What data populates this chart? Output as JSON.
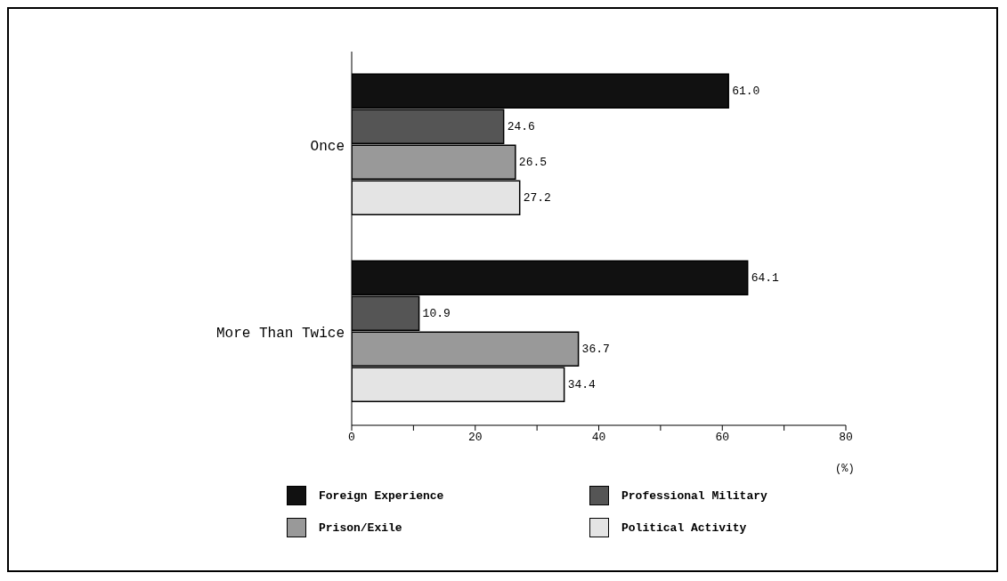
{
  "chart_data": {
    "type": "bar",
    "orientation": "horizontal",
    "xlabel": "(%)",
    "categories": [
      "Once",
      "More Than Twice"
    ],
    "series": [
      {
        "name": "Foreign Experience",
        "color": "#111111",
        "values": [
          61.0,
          64.1
        ],
        "value_labels": [
          "61.0",
          "64.1"
        ]
      },
      {
        "name": "Professional Military",
        "color": "#555555",
        "values": [
          24.6,
          10.9
        ],
        "value_labels": [
          "24.6",
          "10.9"
        ]
      },
      {
        "name": "Prison/Exile",
        "color": "#999999",
        "values": [
          26.5,
          36.7
        ],
        "value_labels": [
          "26.5",
          "36.7"
        ]
      },
      {
        "name": "Political Activity",
        "color": "#e4e4e4",
        "values": [
          27.2,
          34.4
        ],
        "value_labels": [
          "27.2",
          "34.4"
        ]
      }
    ],
    "xlim": [
      0,
      80
    ],
    "xticks": [
      0,
      {
        "value": 10,
        "label": null
      },
      20,
      {
        "value": 30,
        "label": null
      },
      40,
      {
        "value": 50,
        "label": null
      },
      60,
      {
        "value": 70,
        "label": null
      },
      80
    ],
    "legend": "bottom"
  }
}
